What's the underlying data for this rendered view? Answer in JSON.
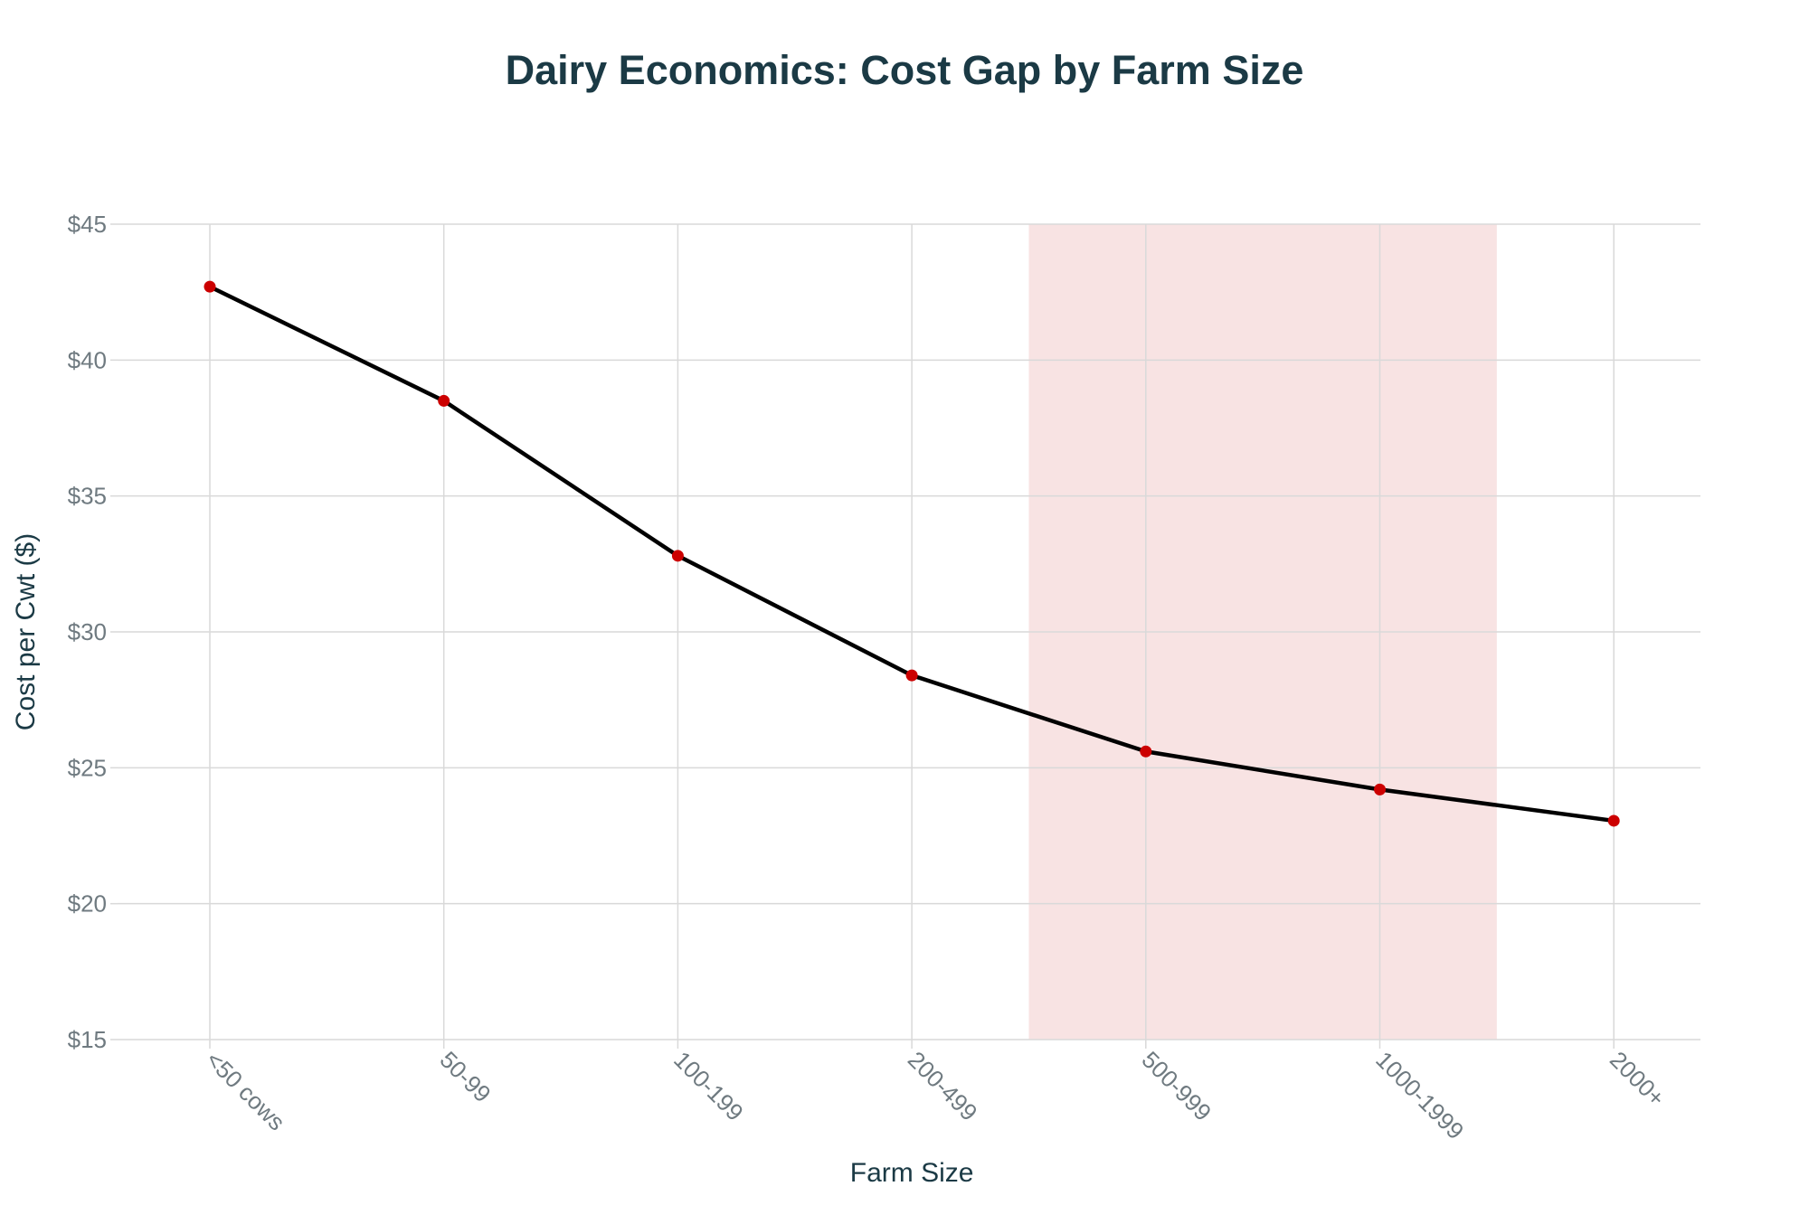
{
  "chart_data": {
    "type": "line",
    "title": "Dairy Economics: Cost Gap by Farm Size",
    "xlabel": "Farm Size",
    "ylabel": "Cost per Cwt ($)",
    "categories": [
      "<50 cows",
      "50-99",
      "100-199",
      "200-499",
      "500-999",
      "1000-1999",
      "2000+"
    ],
    "series": [
      {
        "values": [
          42.7,
          38.5,
          32.8,
          28.4,
          25.6,
          24.2,
          23.05
        ]
      }
    ],
    "ylim": [
      15,
      45
    ],
    "yticks": [
      15,
      20,
      25,
      30,
      35,
      40,
      45
    ],
    "ytick_labels": [
      "$15",
      "$20",
      "$25",
      "$30",
      "$35",
      "$40",
      "$45"
    ],
    "highlight_band": {
      "from_category_index": 3.5,
      "to_category_index": 5.5
    },
    "grid": true,
    "colors": {
      "line": "#000000",
      "markers": "#cc0000",
      "band": "#f8e3e3",
      "grid": "#d9d9d9",
      "title": "#1b3a45",
      "tick": "#6f7a80"
    }
  }
}
